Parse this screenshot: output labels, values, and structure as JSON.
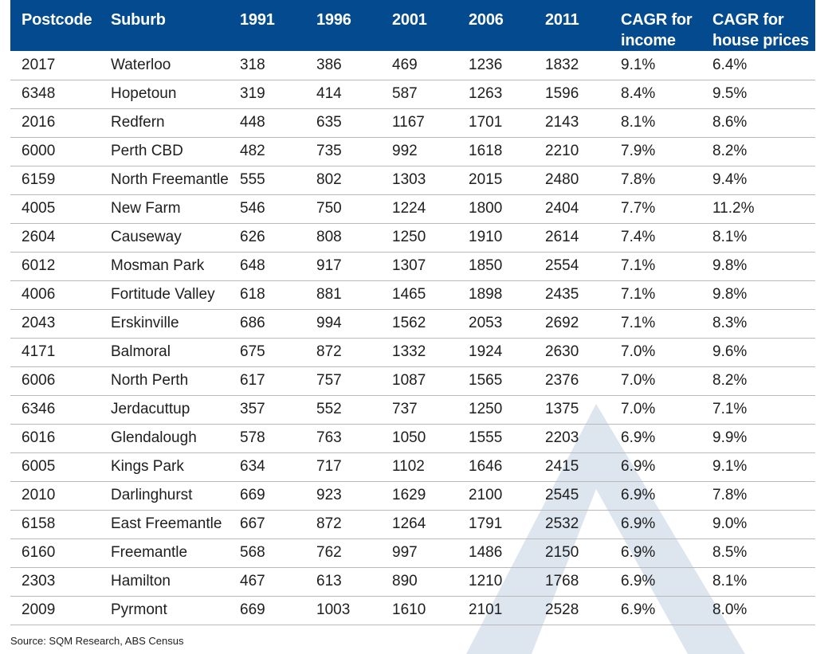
{
  "chart_data": {
    "type": "table",
    "columns": [
      "Postcode",
      "Suburb",
      "1991",
      "1996",
      "2001",
      "2006",
      "2011",
      "CAGR for income",
      "CAGR for house prices"
    ],
    "header_lines": [
      [
        "Postcode"
      ],
      [
        "Suburb"
      ],
      [
        "1991"
      ],
      [
        "1996"
      ],
      [
        "2001"
      ],
      [
        "2006"
      ],
      [
        "2011"
      ],
      [
        "CAGR for",
        "income"
      ],
      [
        "CAGR for",
        "house prices"
      ]
    ],
    "rows": [
      [
        "2017",
        "Waterloo",
        "318",
        "386",
        "469",
        "1236",
        "1832",
        "9.1%",
        "6.4%"
      ],
      [
        "6348",
        "Hopetoun",
        "319",
        "414",
        "587",
        "1263",
        "1596",
        "8.4%",
        "9.5%"
      ],
      [
        "2016",
        "Redfern",
        "448",
        "635",
        "1167",
        "1701",
        "2143",
        "8.1%",
        "8.6%"
      ],
      [
        "6000",
        "Perth CBD",
        "482",
        "735",
        "992",
        "1618",
        "2210",
        "7.9%",
        "8.2%"
      ],
      [
        "6159",
        "North Freemantle",
        "555",
        "802",
        "1303",
        "2015",
        "2480",
        "7.8%",
        "9.4%"
      ],
      [
        "4005",
        "New Farm",
        "546",
        "750",
        "1224",
        "1800",
        "2404",
        "7.7%",
        "11.2%"
      ],
      [
        "2604",
        "Causeway",
        "626",
        "808",
        "1250",
        "1910",
        "2614",
        "7.4%",
        "8.1%"
      ],
      [
        "6012",
        "Mosman Park",
        "648",
        "917",
        "1307",
        "1850",
        "2554",
        "7.1%",
        "9.8%"
      ],
      [
        "4006",
        "Fortitude Valley",
        "618",
        "881",
        "1465",
        "1898",
        "2435",
        "7.1%",
        "9.8%"
      ],
      [
        "2043",
        "Erskinville",
        "686",
        "994",
        "1562",
        "2053",
        "2692",
        "7.1%",
        "8.3%"
      ],
      [
        "4171",
        "Balmoral",
        "675",
        "872",
        "1332",
        "1924",
        "2630",
        "7.0%",
        "9.6%"
      ],
      [
        "6006",
        "North Perth",
        "617",
        "757",
        "1087",
        "1565",
        "2376",
        "7.0%",
        "8.2%"
      ],
      [
        "6346",
        "Jerdacuttup",
        "357",
        "552",
        "737",
        "1250",
        "1375",
        "7.0%",
        "7.1%"
      ],
      [
        "6016",
        "Glendalough",
        "578",
        "763",
        "1050",
        "1555",
        "2203",
        "6.9%",
        "9.9%"
      ],
      [
        "6005",
        "Kings Park",
        "634",
        "717",
        "1102",
        "1646",
        "2415",
        "6.9%",
        "9.1%"
      ],
      [
        "2010",
        "Darlinghurst",
        "669",
        "923",
        "1629",
        "2100",
        "2545",
        "6.9%",
        "7.8%"
      ],
      [
        "6158",
        "East Freemantle",
        "667",
        "872",
        "1264",
        "1791",
        "2532",
        "6.9%",
        "9.0%"
      ],
      [
        "6160",
        "Freemantle",
        "568",
        "762",
        "997",
        "1486",
        "2150",
        "6.9%",
        "8.5%"
      ],
      [
        "2303",
        "Hamilton",
        "467",
        "613",
        "890",
        "1210",
        "1768",
        "6.9%",
        "8.1%"
      ],
      [
        "2009",
        "Pyrmont",
        "669",
        "1003",
        "1610",
        "2101",
        "2528",
        "6.9%",
        "8.0%"
      ]
    ],
    "source": "Source: SQM Research, ABS Census",
    "colors": {
      "header_bg": "#034a8e",
      "header_text": "#ffffff",
      "rule": "#b9b9b9",
      "watermark": "#dde6ef"
    }
  }
}
